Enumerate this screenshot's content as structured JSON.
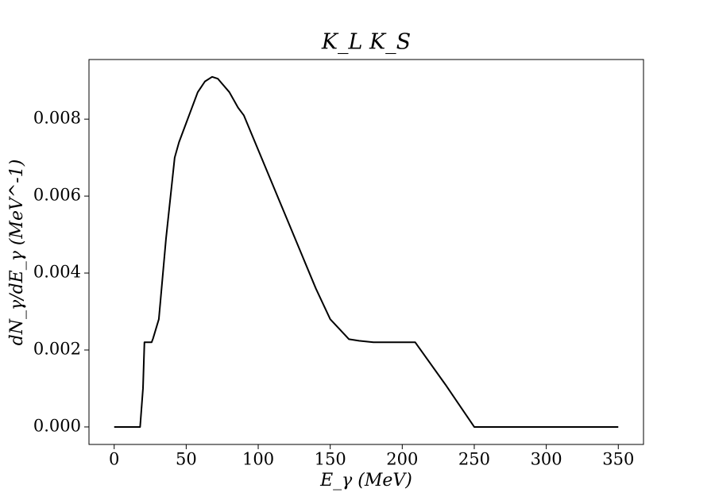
{
  "chart_data": {
    "type": "line",
    "title": "K_L K_S",
    "x_label": "E_γ (MeV)",
    "y_label": "dN_γ/dE_γ (MeV^-1)",
    "x": [
      0,
      18,
      20,
      21,
      24,
      26,
      27,
      31,
      36,
      42,
      45,
      50,
      53,
      58,
      63,
      68,
      72,
      80,
      86,
      90,
      100,
      110,
      120,
      130,
      140,
      150,
      160,
      163,
      170,
      180,
      190,
      200,
      209,
      230,
      250,
      300,
      350
    ],
    "series": [
      {
        "name": "K_L K_S",
        "color": "#000000",
        "values": [
          0,
          0,
          0.001,
          0.0022,
          0.0022,
          0.0022,
          0.0023,
          0.0028,
          0.0049,
          0.007,
          0.0074,
          0.0079,
          0.0082,
          0.0087,
          0.00898,
          0.0091,
          0.00905,
          0.0087,
          0.0083,
          0.0081,
          0.0072,
          0.0063,
          0.0054,
          0.0045,
          0.0036,
          0.0028,
          0.0024,
          0.00228,
          0.00224,
          0.0022,
          0.0022,
          0.0022,
          0.0022,
          0.0011,
          0,
          0,
          0
        ]
      }
    ],
    "xlim": [
      -17.5,
      367.5
    ],
    "ylim": [
      -0.000455,
      0.00955
    ],
    "xticks": [
      0,
      50,
      100,
      150,
      200,
      250,
      300,
      350
    ],
    "yticks": [
      {
        "value": 0,
        "label": "0.000"
      },
      {
        "value": 0.002,
        "label": "0.002"
      },
      {
        "value": 0.004,
        "label": "0.004"
      },
      {
        "value": 0.006,
        "label": "0.006"
      },
      {
        "value": 0.008,
        "label": "0.008"
      }
    ],
    "grid": false
  }
}
